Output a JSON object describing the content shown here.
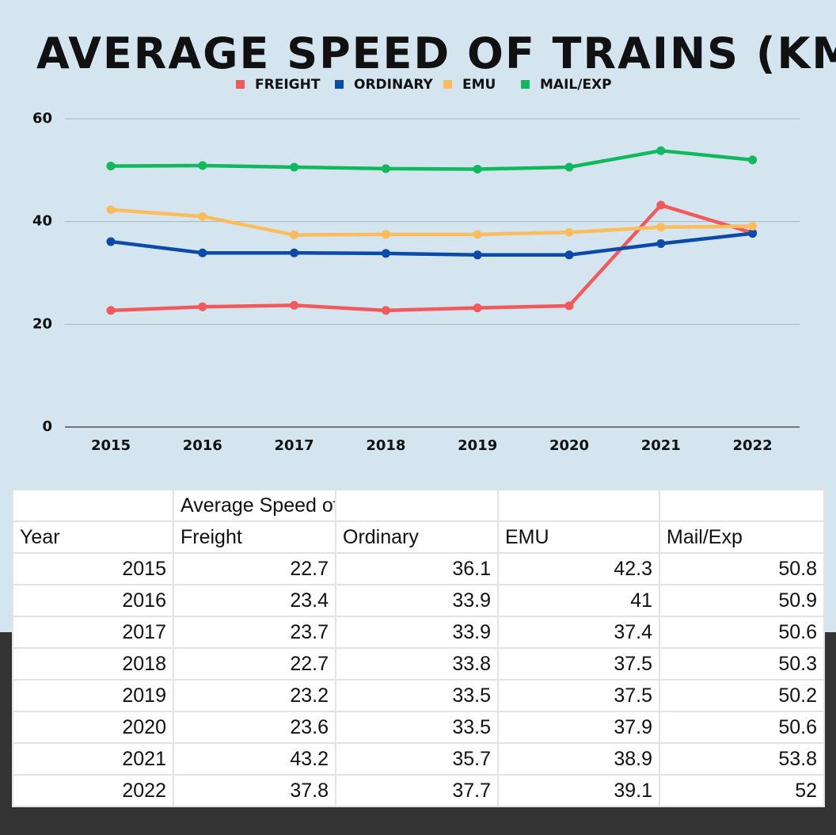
{
  "chart_data": {
    "type": "line",
    "title": "AVERAGE SPEED OF TRAINS (KM/H)",
    "categories": [
      "2015",
      "2016",
      "2017",
      "2018",
      "2019",
      "2020",
      "2021",
      "2022"
    ],
    "series": [
      {
        "name": "FREIGHT",
        "color": "#f05a5a",
        "values": [
          22.7,
          23.4,
          23.7,
          22.7,
          23.2,
          23.6,
          43.2,
          37.8
        ]
      },
      {
        "name": "ORDINARY",
        "color": "#0b4aa8",
        "values": [
          36.1,
          33.9,
          33.9,
          33.8,
          33.5,
          33.5,
          35.7,
          37.7
        ]
      },
      {
        "name": "EMU",
        "color": "#fbbd5c",
        "values": [
          42.3,
          41,
          37.4,
          37.5,
          37.5,
          37.9,
          38.9,
          39.1
        ]
      },
      {
        "name": "MAIL/EXP",
        "color": "#12b85c",
        "values": [
          50.8,
          50.9,
          50.6,
          50.3,
          50.2,
          50.6,
          53.8,
          52
        ]
      }
    ],
    "yticks": [
      "0",
      "20",
      "40",
      "60"
    ],
    "ylim": [
      0,
      60
    ],
    "xlabel": "",
    "ylabel": "",
    "grid": true,
    "legend_position": "top-center"
  },
  "table": {
    "header_top": [
      "",
      "Average Speed of Trains (Km/h)",
      "",
      "",
      ""
    ],
    "header": [
      "Year",
      "Freight",
      "Ordinary",
      "EMU",
      "Mail/Exp"
    ],
    "rows": [
      [
        "2015",
        "22.7",
        "36.1",
        "42.3",
        "50.8"
      ],
      [
        "2016",
        "23.4",
        "33.9",
        "41",
        "50.9"
      ],
      [
        "2017",
        "23.7",
        "33.9",
        "37.4",
        "50.6"
      ],
      [
        "2018",
        "22.7",
        "33.8",
        "37.5",
        "50.3"
      ],
      [
        "2019",
        "23.2",
        "33.5",
        "37.5",
        "50.2"
      ],
      [
        "2020",
        "23.6",
        "33.5",
        "37.9",
        "50.6"
      ],
      [
        "2021",
        "43.2",
        "35.7",
        "38.9",
        "53.8"
      ],
      [
        "2022",
        "37.8",
        "37.7",
        "39.1",
        "52"
      ]
    ]
  }
}
